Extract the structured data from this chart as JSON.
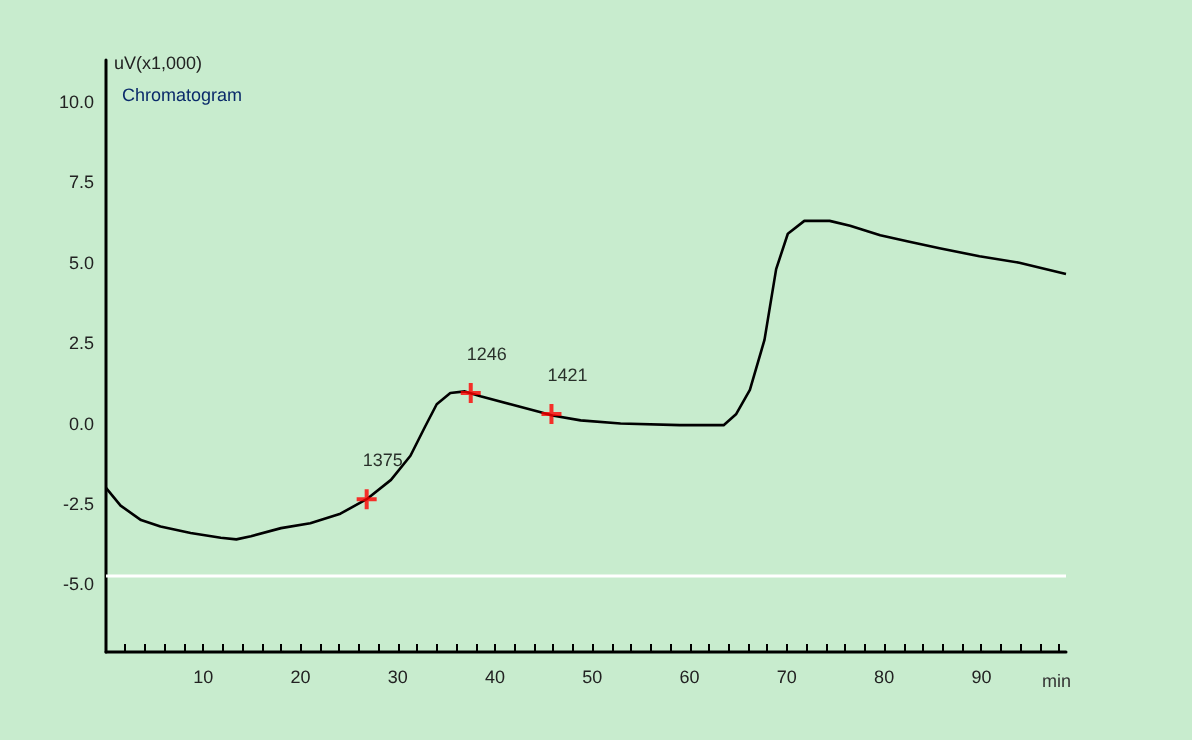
{
  "chart_data": {
    "type": "line",
    "title": "Chromatogram",
    "ylabel": "uV(x1,000)",
    "xlabel": "min",
    "xlim": [
      0,
      98.7
    ],
    "ylim": [
      -7.1,
      11.3
    ],
    "xticks": [
      {
        "value": 2,
        "label": null
      },
      {
        "value": 4,
        "label": null
      },
      {
        "value": 6,
        "label": null
      },
      {
        "value": 8,
        "label": null
      },
      {
        "value": 10,
        "label": "10"
      },
      {
        "value": 12,
        "label": null
      },
      {
        "value": 14,
        "label": null
      },
      {
        "value": 16,
        "label": null
      },
      {
        "value": 18,
        "label": null
      },
      {
        "value": 20,
        "label": "20"
      },
      {
        "value": 22,
        "label": null
      },
      {
        "value": 24,
        "label": null
      },
      {
        "value": 26,
        "label": null
      },
      {
        "value": 28,
        "label": null
      },
      {
        "value": 30,
        "label": "30"
      },
      {
        "value": 32,
        "label": null
      },
      {
        "value": 34,
        "label": null
      },
      {
        "value": 36,
        "label": null
      },
      {
        "value": 38,
        "label": null
      },
      {
        "value": 40,
        "label": "40"
      },
      {
        "value": 42,
        "label": null
      },
      {
        "value": 44,
        "label": null
      },
      {
        "value": 46,
        "label": null
      },
      {
        "value": 48,
        "label": null
      },
      {
        "value": 50,
        "label": "50"
      },
      {
        "value": 52,
        "label": null
      },
      {
        "value": 54,
        "label": null
      },
      {
        "value": 56,
        "label": null
      },
      {
        "value": 58,
        "label": null
      },
      {
        "value": 60,
        "label": "60"
      },
      {
        "value": 62,
        "label": null
      },
      {
        "value": 64,
        "label": null
      },
      {
        "value": 66,
        "label": null
      },
      {
        "value": 68,
        "label": null
      },
      {
        "value": 70,
        "label": "70"
      },
      {
        "value": 72,
        "label": null
      },
      {
        "value": 74,
        "label": null
      },
      {
        "value": 76,
        "label": null
      },
      {
        "value": 78,
        "label": null
      },
      {
        "value": 80,
        "label": "80"
      },
      {
        "value": 82,
        "label": null
      },
      {
        "value": 84,
        "label": null
      },
      {
        "value": 86,
        "label": null
      },
      {
        "value": 88,
        "label": null
      },
      {
        "value": 90,
        "label": "90"
      },
      {
        "value": 92,
        "label": null
      },
      {
        "value": 94,
        "label": null
      },
      {
        "value": 96,
        "label": null
      },
      {
        "value": 98,
        "label": null
      }
    ],
    "yticks": [
      {
        "value": -5,
        "label": "-5.0"
      },
      {
        "value": -2.5,
        "label": "-2.5"
      },
      {
        "value": 0,
        "label": "0.0"
      },
      {
        "value": 2.5,
        "label": "2.5"
      },
      {
        "value": 5,
        "label": "5.0"
      },
      {
        "value": 7.5,
        "label": "7.5"
      },
      {
        "value": 10,
        "label": "10.0"
      }
    ],
    "grid": false,
    "annotations": [
      {
        "text": "1375",
        "x": 26.8,
        "y": -2.35
      },
      {
        "text": "1246",
        "x": 37.5,
        "y": 0.95
      },
      {
        "text": "1421",
        "x": 45.8,
        "y": 0.3
      }
    ],
    "ref_lines": [
      {
        "axis": "y",
        "value": -4.7,
        "color": "#ffffff"
      }
    ],
    "series": [
      {
        "color": "#000000",
        "marker": "none",
        "x": [
          0,
          1.5,
          3.6,
          5.6,
          8.7,
          11.8,
          13.4,
          14.9,
          18,
          21,
          24.1,
          26.8,
          29.3,
          31.3,
          32.8,
          34,
          35.4,
          36.9,
          38.5,
          41.6,
          44.7,
          45.9,
          48.8,
          52.9,
          59,
          63.5,
          64.8,
          66.2,
          67.7,
          68.9,
          70.1,
          71.8,
          74.4,
          76.5,
          79.6,
          82.6,
          85.7,
          89.8,
          93.9,
          98.7
        ],
        "values": [
          -2,
          -2.55,
          -3,
          -3.2,
          -3.4,
          -3.55,
          -3.6,
          -3.5,
          -3.25,
          -3.1,
          -2.8,
          -2.35,
          -1.75,
          -1,
          -0.1,
          0.6,
          0.95,
          1,
          0.85,
          0.6,
          0.35,
          0.25,
          0.1,
          0,
          -0.05,
          -0.05,
          0.3,
          1.05,
          2.6,
          4.8,
          5.9,
          6.3,
          6.3,
          6.15,
          5.85,
          5.65,
          5.45,
          5.2,
          5,
          4.65
        ]
      },
      {
        "type": "scatter",
        "color": "#ff0000",
        "marker": "cross",
        "x": [
          26.8,
          37.5,
          45.8
        ],
        "values": [
          -2.35,
          0.95,
          0.3
        ]
      }
    ]
  }
}
